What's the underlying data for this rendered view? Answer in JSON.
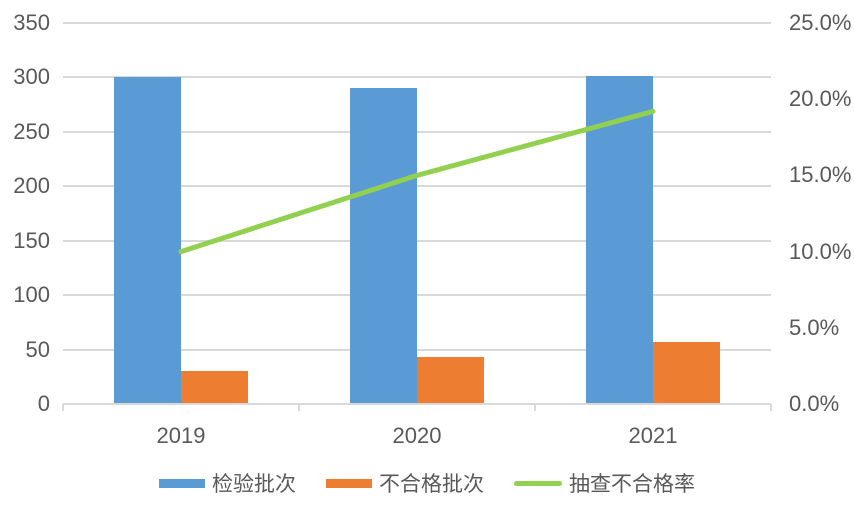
{
  "chart_data": {
    "type": "bar",
    "subtype": "combo-bar-line-dual-axis",
    "title": "",
    "categories": [
      "2019",
      "2020",
      "2021"
    ],
    "series": [
      {
        "id": "inspection-batches",
        "name": "检验批次",
        "type": "bar",
        "axis": "left",
        "color": "#5B9BD5",
        "values": [
          300,
          290,
          301
        ]
      },
      {
        "id": "unqualified-batches",
        "name": "不合格批次",
        "type": "bar",
        "axis": "left",
        "color": "#ED7D31",
        "values": [
          30,
          43,
          57
        ]
      },
      {
        "id": "sampling-failure-rate",
        "name": "抽查不合格率",
        "type": "line",
        "axis": "right",
        "color": "#92D050",
        "values": [
          10.0,
          15.0,
          19.2
        ],
        "unit": "%"
      }
    ],
    "left_axis": {
      "min": 0,
      "max": 350,
      "step": 50,
      "tick_labels": [
        "350",
        "300",
        "250",
        "200",
        "150",
        "100",
        "50",
        "0"
      ]
    },
    "right_axis": {
      "min": 0,
      "max": 25,
      "step": 5,
      "tick_labels": [
        "25.0%",
        "20.0%",
        "15.0%",
        "10.0%",
        "5.0%",
        "0.0%"
      ]
    },
    "grid": true,
    "legend_position": "bottom",
    "colors": {
      "grid": "#D9D9D9",
      "axis_line": "#D9D9D9",
      "tick_text": "#595959",
      "background": "#FFFFFF"
    }
  }
}
